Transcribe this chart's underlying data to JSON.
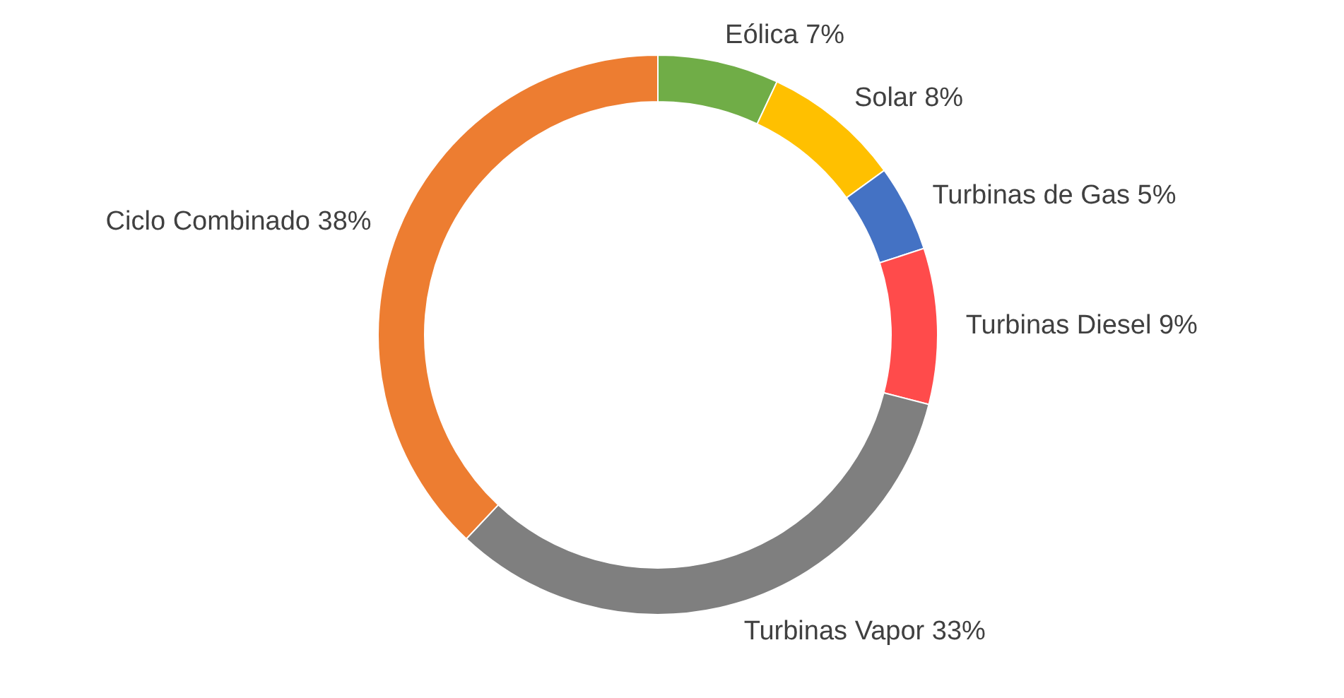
{
  "chart_data": {
    "type": "donut",
    "categories": [
      "Eólica",
      "Solar",
      "Turbinas de Gas",
      "Turbinas Diesel",
      "Turbinas Vapor",
      "Ciclo Combinado"
    ],
    "values": [
      7,
      8,
      5,
      9,
      33,
      38
    ],
    "value_labels": [
      "7%",
      "8%",
      "5%",
      "9%",
      "33%",
      "38%"
    ],
    "colors": [
      "#70ad47",
      "#ffc000",
      "#4472c4",
      "#ff4b4b",
      "#7f7f7f",
      "#ed7d31"
    ],
    "legend": false
  }
}
